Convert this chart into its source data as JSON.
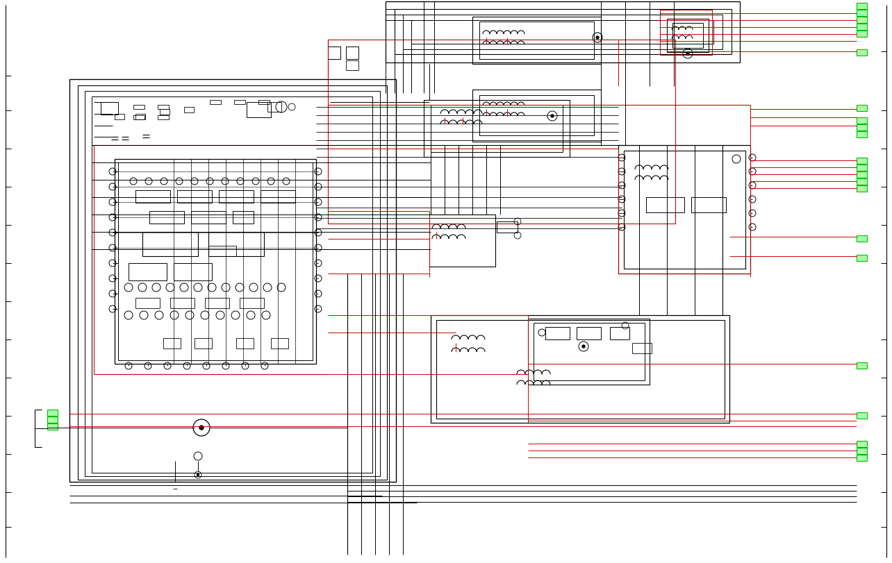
{
  "bg_color": "#ffffff",
  "black": "#000000",
  "red": "#cc0000",
  "green": "#00bb00",
  "fig_width": 12.84,
  "fig_height": 8.12
}
